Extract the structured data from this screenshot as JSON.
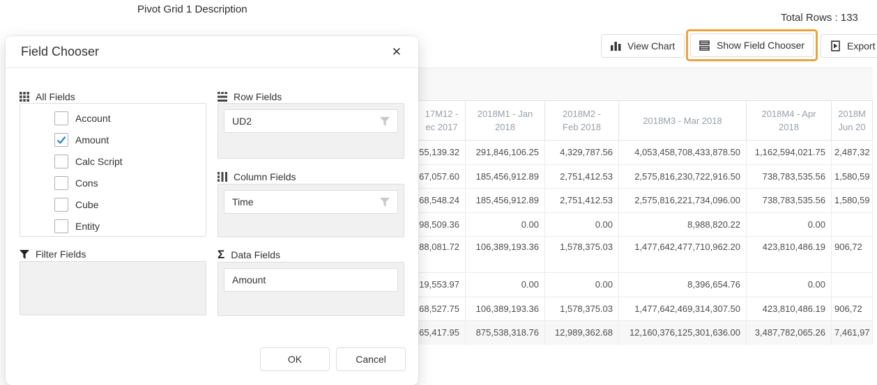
{
  "page": {
    "title": "Pivot Grid 1 Description",
    "total_rows": "Total Rows : 133"
  },
  "toolbar": {
    "view_chart_label": "View Chart",
    "show_field_chooser_label": "Show Field Chooser",
    "export_label": "Export",
    "highlight_color": "#e9a43c"
  },
  "dialog": {
    "title": "Field Chooser",
    "close_glyph": "✕",
    "check_color": "#2b7cd3",
    "all_fields": {
      "label": "All Fields",
      "items": [
        {
          "label": "Account",
          "checked": false
        },
        {
          "label": "Amount",
          "checked": true
        },
        {
          "label": "Calc Script",
          "checked": false
        },
        {
          "label": "Cons",
          "checked": false
        },
        {
          "label": "Cube",
          "checked": false
        },
        {
          "label": "Entity",
          "checked": false
        }
      ]
    },
    "row_fields": {
      "label": "Row Fields",
      "items": [
        {
          "label": "UD2",
          "filter_icon": true
        }
      ]
    },
    "column_fields": {
      "label": "Column Fields",
      "items": [
        {
          "label": "Time",
          "filter_icon": true
        }
      ]
    },
    "filter_fields": {
      "label": "Filter Fields",
      "items": []
    },
    "data_fields": {
      "label": "Data Fields",
      "sigma_glyph": "Σ",
      "items": [
        {
          "label": "Amount",
          "filter_icon": false
        }
      ]
    },
    "ok_label": "OK",
    "cancel_label": "Cancel"
  },
  "table": {
    "columns": [
      {
        "header_lines": [
          "17M12 -",
          "ec 2017"
        ],
        "note": "clipped-left"
      },
      {
        "header_lines": [
          "2018M1 - Jan",
          "2018"
        ]
      },
      {
        "header_lines": [
          "2018M2 -",
          "Feb 2018"
        ]
      },
      {
        "header_lines": [
          "2018M3 - Mar 2018"
        ]
      },
      {
        "header_lines": [
          "2018M4 - Apr",
          "2018"
        ]
      },
      {
        "header_lines": [
          "2018M",
          "Jun 20"
        ],
        "note": "clipped-right"
      }
    ],
    "rows": [
      {
        "cells": [
          "55,139.32",
          "291,846,106.25",
          "4,329,787.56",
          "4,053,458,708,433,878.50",
          "1,162,594,021.75",
          "2,487,32"
        ]
      },
      {
        "cells": [
          "67,057.60",
          "185,456,912.89",
          "2,751,412.53",
          "2,575,816,230,722,916.50",
          "738,783,535.56",
          "1,580,59"
        ]
      },
      {
        "cells": [
          "68,548.24",
          "185,456,912.89",
          "2,751,412.53",
          "2,575,816,221,734,096.00",
          "738,783,535.56",
          "1,580,59"
        ]
      },
      {
        "cells": [
          "98,509.36",
          "0.00",
          "0.00",
          "8,988,820.22",
          "0.00",
          ""
        ]
      },
      {
        "cells": [
          "88,081.72",
          "106,389,193.36",
          "1,578,375.03",
          "1,477,642,477,710,962.20",
          "423,810,486.19",
          "906,72"
        ],
        "tall": true
      },
      {
        "cells": [
          "19,553.97",
          "0.00",
          "0.00",
          "8,396,654.76",
          "0.00",
          ""
        ]
      },
      {
        "cells": [
          "68,527.75",
          "106,389,193.36",
          "1,578,375.03",
          "1,477,642,469,314,307.50",
          "423,810,486.19",
          "906,72"
        ]
      },
      {
        "cells": [
          "65,417.95",
          "875,538,318.76",
          "12,989,362.68",
          "12,160,376,125,301,636.00",
          "3,487,782,065.26",
          "7,461,97"
        ],
        "total": true
      }
    ]
  }
}
